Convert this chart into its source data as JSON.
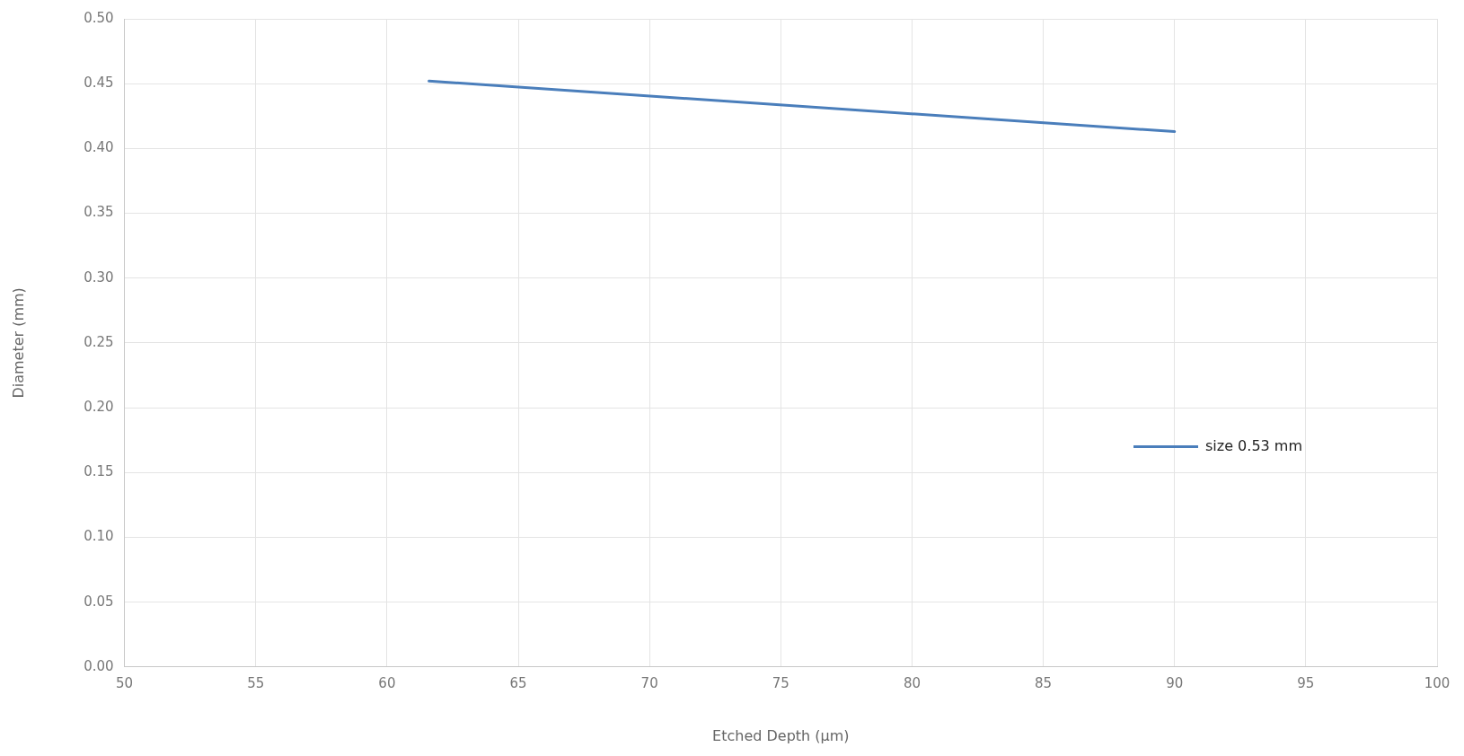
{
  "chart_data": {
    "type": "line",
    "xlabel": "Etched Depth (µm)",
    "ylabel": "Diameter (mm)",
    "series": [
      {
        "name": "size 0.53 mm",
        "color": "#4a7ebb",
        "x": [
          61.6,
          90
        ],
        "values": [
          0.452,
          0.413
        ]
      }
    ],
    "xlim": [
      50,
      100
    ],
    "xticks": [
      50,
      55,
      60,
      65,
      70,
      75,
      80,
      85,
      90,
      95,
      100
    ],
    "ylim": [
      0,
      0.5
    ],
    "yticks": [
      {
        "value": 0,
        "label": "0.00"
      },
      {
        "value": 0.05,
        "label": "0.05"
      },
      {
        "value": 0.1,
        "label": "0.10"
      },
      {
        "value": 0.15,
        "label": "0.15"
      },
      {
        "value": 0.2,
        "label": "0.20"
      },
      {
        "value": 0.25,
        "label": "0.25"
      },
      {
        "value": 0.3,
        "label": "0.30"
      },
      {
        "value": 0.35,
        "label": "0.35"
      },
      {
        "value": 0.4,
        "label": "0.40"
      },
      {
        "value": 0.45,
        "label": "0.45"
      },
      {
        "value": 0.5,
        "label": "0.50"
      }
    ],
    "grid": true,
    "legend": "right",
    "marker": "none",
    "line_style": "solid"
  }
}
